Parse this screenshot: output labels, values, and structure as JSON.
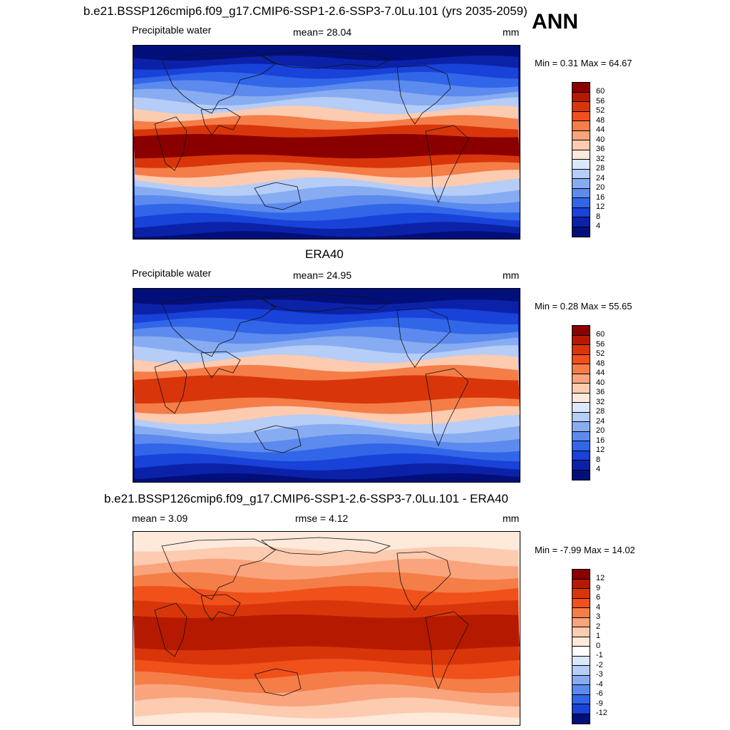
{
  "header": {
    "top_title": "b.e21.BSSP126cmip6.f09_g17.CMIP6-SSP1-2.6-SSP3-7.0Lu.101 (yrs 2035-2059)",
    "season": "ANN"
  },
  "panels": [
    {
      "id": "model",
      "title": "",
      "left_label": "Precipitable water",
      "center_label": "mean=  28.04",
      "units": "mm",
      "minmax": "Min =   0.31 Max =  64.67",
      "colorbar_labels": [
        "60",
        "56",
        "52",
        "48",
        "44",
        "40",
        "36",
        "32",
        "28",
        "24",
        "20",
        "16",
        "12",
        "8",
        "4"
      ],
      "colorbar_colors": [
        "#8a0000",
        "#b51a00",
        "#d8360a",
        "#f0501a",
        "#f57d48",
        "#f9a47c",
        "#fccbb0",
        "#fee9da",
        "#dbe8fb",
        "#b5cdf7",
        "#88acf1",
        "#5c8aee",
        "#3166e8",
        "#1842d8",
        "#0b22a8",
        "#020f7a"
      ]
    },
    {
      "id": "obs",
      "title": "ERA40",
      "left_label": "Precipitable water",
      "center_label": "mean=  24.95",
      "units": "mm",
      "minmax": "Min =   0.28 Max =  55.65",
      "colorbar_labels": [
        "60",
        "56",
        "52",
        "48",
        "44",
        "40",
        "36",
        "32",
        "28",
        "24",
        "20",
        "16",
        "12",
        "8",
        "4"
      ],
      "colorbar_colors": [
        "#8a0000",
        "#b51a00",
        "#d8360a",
        "#f0501a",
        "#f57d48",
        "#f9a47c",
        "#fccbb0",
        "#fee9da",
        "#dbe8fb",
        "#b5cdf7",
        "#88acf1",
        "#5c8aee",
        "#3166e8",
        "#1842d8",
        "#0b22a8",
        "#020f7a"
      ]
    },
    {
      "id": "diff",
      "title": "b.e21.BSSP126cmip6.f09_g17.CMIP6-SSP1-2.6-SSP3-7.0Lu.101 - ERA40",
      "left_label": "mean =   3.09",
      "center_label": "rmse =   4.12",
      "units": "mm",
      "minmax": "Min =  -7.99 Max =  14.02",
      "colorbar_labels": [
        "12",
        "9",
        "6",
        "4",
        "3",
        "2",
        "1",
        "0",
        "-1",
        "-2",
        "-3",
        "-4",
        "-6",
        "-9",
        "-12"
      ],
      "colorbar_colors": [
        "#8a0000",
        "#b51a00",
        "#d8360a",
        "#f0501a",
        "#f57d48",
        "#f9a47c",
        "#fccbb0",
        "#fee9da",
        "#ffffff",
        "#dbe8fb",
        "#b5cdf7",
        "#88acf1",
        "#5c8aee",
        "#3166e8",
        "#1842d8",
        "#020f7a"
      ]
    }
  ],
  "map_layers": {
    "model": [
      {
        "color": "#0b22a8",
        "wave": 6
      },
      {
        "color": "#1842d8",
        "wave": 7
      },
      {
        "color": "#3166e8",
        "wave": 8
      },
      {
        "color": "#5c8aee",
        "wave": 9
      },
      {
        "color": "#88acf1",
        "wave": 9
      },
      {
        "color": "#b5cdf7",
        "wave": 10
      },
      {
        "color": "#fccbb0",
        "wave": 10
      },
      {
        "color": "#f57d48",
        "wave": 8
      },
      {
        "color": "#d8360a",
        "wave": 6
      },
      {
        "color": "#8a0000",
        "wave": 4
      }
    ],
    "obs": [
      {
        "color": "#0b22a8",
        "wave": 6
      },
      {
        "color": "#1842d8",
        "wave": 7
      },
      {
        "color": "#3166e8",
        "wave": 8
      },
      {
        "color": "#5c8aee",
        "wave": 9
      },
      {
        "color": "#88acf1",
        "wave": 9
      },
      {
        "color": "#b5cdf7",
        "wave": 10
      },
      {
        "color": "#fccbb0",
        "wave": 10
      },
      {
        "color": "#f57d48",
        "wave": 8
      },
      {
        "color": "#d8360a",
        "wave": 6
      }
    ],
    "diff": [
      {
        "color": "#fccbb0",
        "wave": 6
      },
      {
        "color": "#f9a47c",
        "wave": 9
      },
      {
        "color": "#f57d48",
        "wave": 9
      },
      {
        "color": "#f0501a",
        "wave": 8
      },
      {
        "color": "#d8360a",
        "wave": 6
      },
      {
        "color": "#b51a00",
        "wave": 4
      }
    ]
  }
}
